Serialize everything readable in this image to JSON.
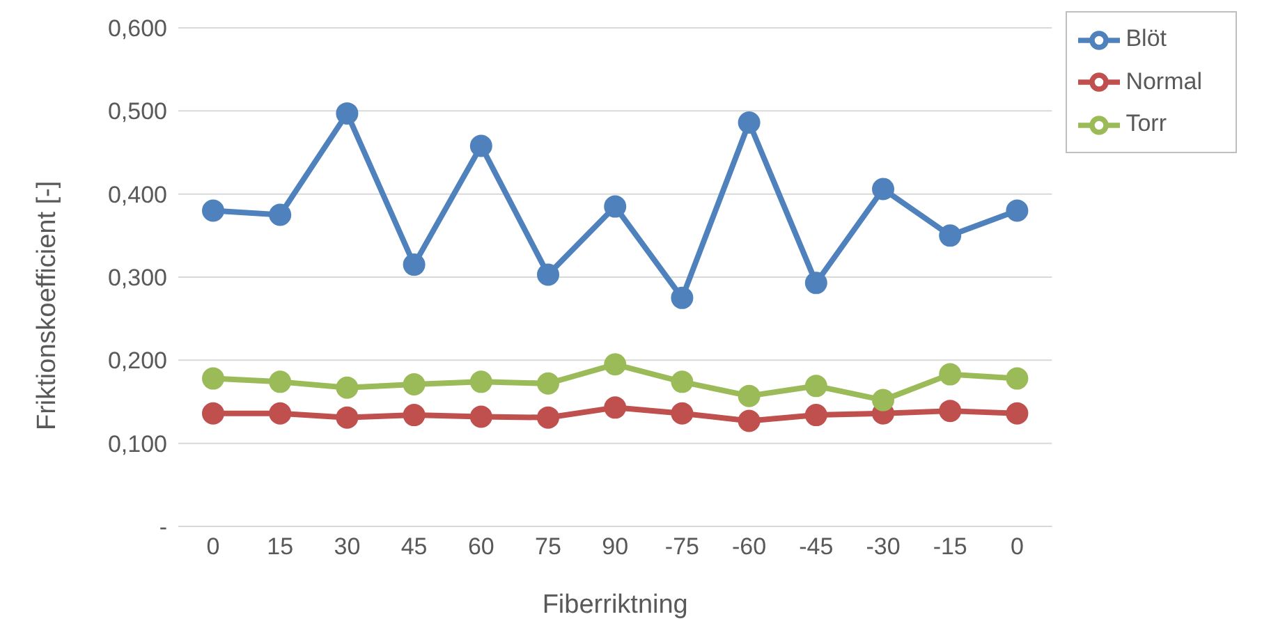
{
  "chart_data": {
    "type": "line",
    "xlabel": "Fiberriktning",
    "ylabel": "Friktionskoefficient [-]",
    "categories": [
      "0",
      "15",
      "30",
      "45",
      "60",
      "75",
      "90",
      "-75",
      "-60",
      "-45",
      "-30",
      "-15",
      "0"
    ],
    "series": [
      {
        "name": "Blöt",
        "color": "#4f81bd",
        "values": [
          0.38,
          0.375,
          0.497,
          0.315,
          0.458,
          0.303,
          0.385,
          0.275,
          0.486,
          0.293,
          0.406,
          0.35,
          0.38
        ]
      },
      {
        "name": "Normal",
        "color": "#c0504d",
        "values": [
          0.136,
          0.136,
          0.131,
          0.134,
          0.132,
          0.131,
          0.143,
          0.136,
          0.127,
          0.134,
          0.136,
          0.139,
          0.136
        ]
      },
      {
        "name": "Torr",
        "color": "#9bbb59",
        "values": [
          0.178,
          0.174,
          0.167,
          0.171,
          0.174,
          0.172,
          0.195,
          0.174,
          0.157,
          0.169,
          0.152,
          0.183,
          0.178
        ]
      }
    ],
    "ylim": [
      0,
      0.6
    ],
    "yticks": [
      {
        "value": 0,
        "label": "-"
      },
      {
        "value": 0.1,
        "label": "0,100"
      },
      {
        "value": 0.2,
        "label": "0,200"
      },
      {
        "value": 0.3,
        "label": "0,300"
      },
      {
        "value": 0.4,
        "label": "0,400"
      },
      {
        "value": 0.5,
        "label": "0,500"
      },
      {
        "value": 0.6,
        "label": "0,600"
      }
    ],
    "grid": "y",
    "legend": "top right",
    "marker": "circle",
    "line_style": "solid"
  }
}
